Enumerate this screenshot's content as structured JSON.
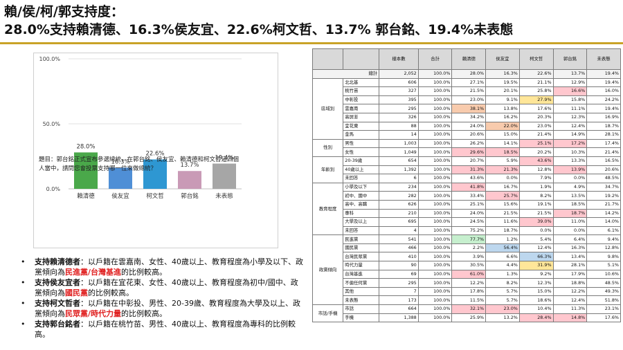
{
  "title": {
    "line1": "賴/侯/柯/郭支持度：",
    "line2": "28.0%支持賴清德、16.3%侯友宜、22.6%柯文哲、13.7% 郭台銘、19.4%未表態"
  },
  "chart_data": {
    "type": "bar",
    "categories": [
      "賴清德",
      "侯友宜",
      "柯文哲",
      "郭台銘",
      "未表態"
    ],
    "values": [
      28.0,
      16.3,
      22.6,
      13.7,
      19.4
    ],
    "value_labels": [
      "28.0%",
      "16.3%",
      "22.6%",
      "13.7%",
      "19.4%"
    ],
    "colors": [
      "#4aa84a",
      "#4f8fd6",
      "#2e97d2",
      "#c99ab6",
      "#a6a6a6"
    ],
    "ylim": [
      0,
      100
    ],
    "yticks": [
      0,
      50,
      100
    ],
    "ytick_labels": [
      "0.0%",
      "50.0%",
      "100.0%"
    ],
    "grid": true
  },
  "chart_question": "題目：郭台銘正式宣布參選總統，在郭台銘、侯友宜、賴清德和柯文哲這四個人當中，請問您會投票支持哪一位來做總統？",
  "bullets": [
    {
      "head": "支持賴清德者",
      "pre": "：以戶籍在雲嘉南、女性、40歲以上、教育程度為小學及以下、政黨傾向為",
      "red": "民進黨/台灣基進",
      "post": "的比例較高。"
    },
    {
      "head": "支持侯友宜者",
      "pre": "：以戶籍在宜花東、女性、40歲以上、教育程度為初中/國中、政黨傾向為",
      "red": "國民黨",
      "post": "的比例較高。"
    },
    {
      "head": "支持柯文哲者",
      "pre": "：以戶籍在中彰投、男性、20-39歲、教育程度為大學及以上、政黨傾向為",
      "red": "民眾黨/時代力量",
      "post": "的比例較高。"
    },
    {
      "head": "支持郭台銘者",
      "pre": "：以戶籍在桃竹苗、男性、40歲以上、教育程度為專科的比例較高。",
      "red": "",
      "post": ""
    }
  ],
  "table": {
    "headers": [
      "",
      "",
      "樣本數",
      "合計",
      "賴清德",
      "侯友宜",
      "柯文哲",
      "郭台銘",
      "未表態"
    ],
    "total": {
      "label": "總計",
      "values": [
        "2,052",
        "100.0%",
        "28.0%",
        "16.3%",
        "22.6%",
        "13.7%",
        "19.4%"
      ]
    },
    "groups": [
      {
        "name": "區域別",
        "rows": [
          {
            "label": "北北基",
            "values": [
              "606",
              "100.0%",
              "27.1%",
              "19.5%",
              "21.1%",
              "12.9%",
              "19.4%"
            ],
            "hl": {}
          },
          {
            "label": "桃竹苗",
            "values": [
              "327",
              "100.0%",
              "21.5%",
              "20.1%",
              "25.8%",
              "16.6%",
              "16.0%"
            ],
            "hl": {
              "5": "hl-pink"
            }
          },
          {
            "label": "中彰投",
            "values": [
              "395",
              "100.0%",
              "23.0%",
              "9.1%",
              "27.9%",
              "15.8%",
              "24.2%"
            ],
            "hl": {
              "4": "hl-yellow"
            }
          },
          {
            "label": "雲嘉南",
            "values": [
              "295",
              "100.0%",
              "38.1%",
              "13.8%",
              "17.6%",
              "11.1%",
              "19.4%"
            ],
            "hl": {
              "2": "hl-orange"
            }
          },
          {
            "label": "高屏澎",
            "values": [
              "326",
              "100.0%",
              "34.2%",
              "16.2%",
              "20.3%",
              "12.3%",
              "16.9%"
            ],
            "hl": {}
          },
          {
            "label": "宜花東",
            "values": [
              "88",
              "100.0%",
              "24.0%",
              "22.0%",
              "23.0%",
              "12.4%",
              "18.7%"
            ],
            "hl": {
              "3": "hl-orange"
            }
          },
          {
            "label": "金馬",
            "values": [
              "14",
              "100.0%",
              "20.6%",
              "15.0%",
              "21.4%",
              "14.9%",
              "28.1%"
            ],
            "hl": {}
          }
        ]
      },
      {
        "name": "性別",
        "rows": [
          {
            "label": "男性",
            "values": [
              "1,003",
              "100.0%",
              "26.2%",
              "14.1%",
              "25.1%",
              "17.2%",
              "17.4%"
            ],
            "hl": {
              "4": "hl-pink",
              "5": "hl-pink"
            }
          },
          {
            "label": "女性",
            "values": [
              "1,049",
              "100.0%",
              "29.6%",
              "18.5%",
              "20.2%",
              "10.3%",
              "21.4%"
            ],
            "hl": {
              "2": "hl-pink",
              "3": "hl-pink"
            }
          }
        ]
      },
      {
        "name": "年齡別",
        "rows": [
          {
            "label": "20-39歲",
            "values": [
              "654",
              "100.0%",
              "20.7%",
              "5.9%",
              "43.6%",
              "13.3%",
              "16.5%"
            ],
            "hl": {
              "4": "hl-pink"
            }
          },
          {
            "label": "40歲以上",
            "values": [
              "1,392",
              "100.0%",
              "31.3%",
              "21.3%",
              "12.8%",
              "13.9%",
              "20.6%"
            ],
            "hl": {
              "2": "hl-pink",
              "3": "hl-pink",
              "5": "hl-pink"
            }
          },
          {
            "label": "未回答",
            "values": [
              "6",
              "100.0%",
              "43.6%",
              "0.0%",
              "7.9%",
              "0.0%",
              "48.5%"
            ],
            "hl": {}
          }
        ]
      },
      {
        "name": "教育程度",
        "rows": [
          {
            "label": "小學及以下",
            "values": [
              "234",
              "100.0%",
              "41.8%",
              "16.7%",
              "1.9%",
              "4.9%",
              "34.7%"
            ],
            "hl": {
              "2": "hl-pink"
            }
          },
          {
            "label": "初中、國中",
            "values": [
              "282",
              "100.0%",
              "33.4%",
              "25.7%",
              "8.2%",
              "13.5%",
              "19.2%"
            ],
            "hl": {
              "3": "hl-pink"
            }
          },
          {
            "label": "高中、高職",
            "values": [
              "626",
              "100.0%",
              "25.1%",
              "15.6%",
              "19.1%",
              "18.5%",
              "21.7%"
            ],
            "hl": {}
          },
          {
            "label": "專科",
            "values": [
              "210",
              "100.0%",
              "24.0%",
              "21.5%",
              "21.5%",
              "18.7%",
              "14.2%"
            ],
            "hl": {
              "5": "hl-pink"
            }
          },
          {
            "label": "大學及以上",
            "values": [
              "695",
              "100.0%",
              "24.5%",
              "11.6%",
              "39.0%",
              "11.0%",
              "14.0%"
            ],
            "hl": {
              "4": "hl-pink"
            }
          },
          {
            "label": "未回答",
            "values": [
              "4",
              "100.0%",
              "75.2%",
              "18.7%",
              "0.0%",
              "0.0%",
              "6.1%"
            ],
            "hl": {}
          }
        ]
      },
      {
        "name": "政黨傾向",
        "rows": [
          {
            "label": "民進黨",
            "values": [
              "541",
              "100.0%",
              "77.7%",
              "1.2%",
              "5.4%",
              "6.4%",
              "9.4%"
            ],
            "hl": {
              "2": "hl-green"
            }
          },
          {
            "label": "國民黨",
            "values": [
              "466",
              "100.0%",
              "2.2%",
              "56.4%",
              "12.4%",
              "16.3%",
              "12.8%"
            ],
            "hl": {
              "3": "hl-blue"
            }
          },
          {
            "label": "台灣民眾黨",
            "values": [
              "410",
              "100.0%",
              "3.9%",
              "6.6%",
              "66.3%",
              "13.4%",
              "9.8%"
            ],
            "hl": {
              "4": "hl-blue"
            }
          },
          {
            "label": "時代力量",
            "values": [
              "90",
              "100.0%",
              "30.5%",
              "4.4%",
              "31.9%",
              "28.1%",
              "5.1%"
            ],
            "hl": {
              "4": "hl-yellow"
            }
          },
          {
            "label": "台灣基進",
            "values": [
              "69",
              "100.0%",
              "61.0%",
              "1.3%",
              "9.2%",
              "17.9%",
              "10.6%"
            ],
            "hl": {
              "2": "hl-pink"
            }
          },
          {
            "label": "不偏任何黨",
            "values": [
              "295",
              "100.0%",
              "12.2%",
              "8.2%",
              "12.3%",
              "18.8%",
              "48.5%"
            ],
            "hl": {}
          },
          {
            "label": "其他",
            "values": [
              "7",
              "100.0%",
              "17.8%",
              "5.7%",
              "15.0%",
              "12.2%",
              "49.3%"
            ],
            "hl": {}
          },
          {
            "label": "未表態",
            "values": [
              "173",
              "100.0%",
              "11.5%",
              "5.7%",
              "18.6%",
              "12.4%",
              "51.8%"
            ],
            "hl": {}
          }
        ]
      },
      {
        "name": "市話/手機",
        "rows": [
          {
            "label": "市話",
            "values": [
              "664",
              "100.0%",
              "32.1%",
              "23.0%",
              "10.4%",
              "11.3%",
              "23.1%"
            ],
            "hl": {
              "2": "hl-pink",
              "3": "hl-pink"
            }
          },
          {
            "label": "手機",
            "values": [
              "1,388",
              "100.0%",
              "25.9%",
              "13.2%",
              "28.4%",
              "14.8%",
              "17.6%"
            ],
            "hl": {
              "4": "hl-pink",
              "5": "hl-pink"
            }
          }
        ]
      }
    ]
  }
}
